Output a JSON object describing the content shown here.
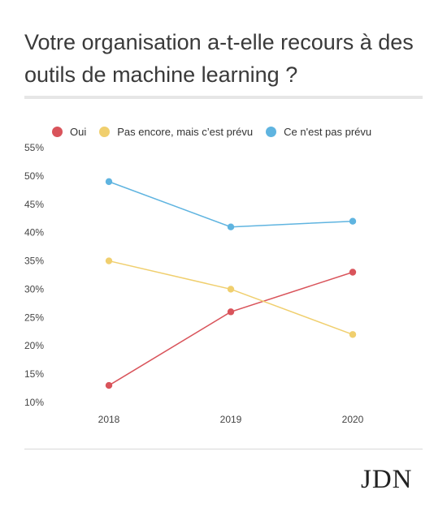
{
  "title": "Votre organisation a-t-elle recours à des outils de machine learning ?",
  "logo": "JDN",
  "chart_data": {
    "type": "line",
    "title": "Votre organisation a-t-elle recours à des outils de machine learning ?",
    "categories": [
      "2018",
      "2019",
      "2020"
    ],
    "ylim": [
      10,
      55
    ],
    "yticks": [
      "10%",
      "15%",
      "20%",
      "25%",
      "30%",
      "35%",
      "40%",
      "45%",
      "50%",
      "55%"
    ],
    "ytick_values": [
      10,
      15,
      20,
      25,
      30,
      35,
      40,
      45,
      50,
      55
    ],
    "grid": false,
    "legend_position": "top",
    "series": [
      {
        "name": "Oui",
        "values": [
          13,
          26,
          33
        ],
        "color": "#d9545b"
      },
      {
        "name": "Pas encore, mais c’est prévu",
        "values": [
          35,
          30,
          22
        ],
        "color": "#f0cf6e"
      },
      {
        "name": "Ce n'est pas prévu",
        "values": [
          49,
          41,
          42
        ],
        "color": "#5fb4e0"
      }
    ]
  }
}
